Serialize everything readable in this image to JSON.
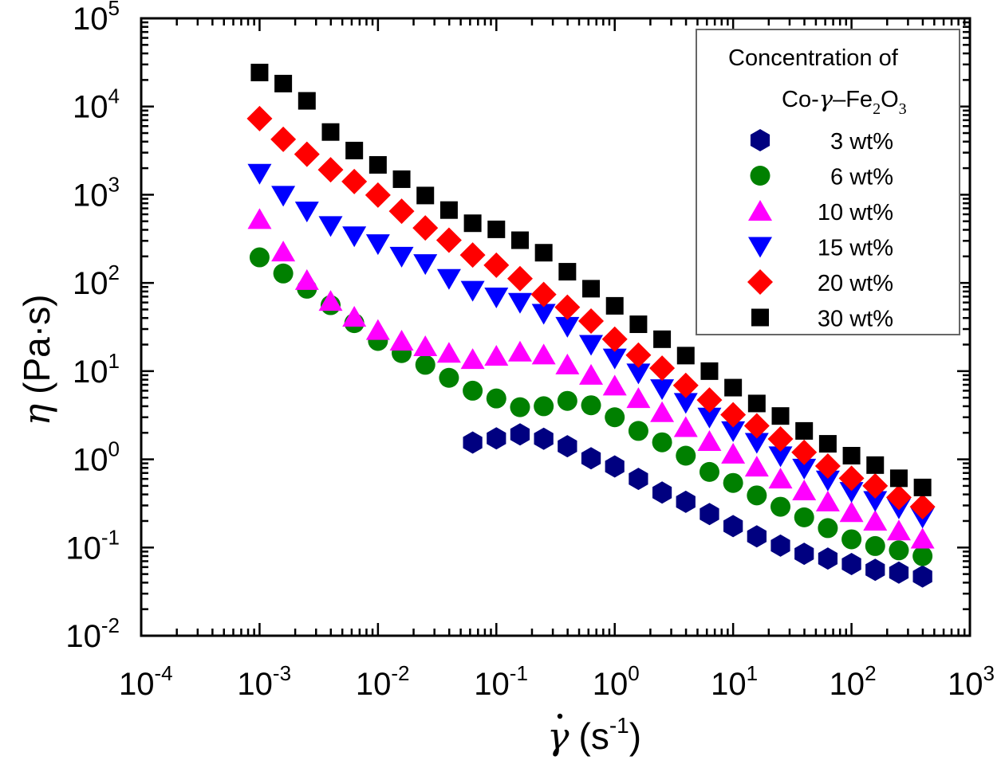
{
  "chart_data": {
    "type": "scatter",
    "title": "",
    "xlabel": "γ̇ (s⁻¹)",
    "xlabel_symbol": "γ",
    "xlabel_unit": "(s",
    "xlabel_exp": "-1",
    "xlabel_close": ")",
    "ylabel": "η (Pa·s)",
    "ylabel_symbol": "η",
    "ylabel_unit": "(Pa·s)",
    "xscale": "log",
    "yscale": "log",
    "xlim": [
      0.0001,
      1000
    ],
    "ylim": [
      0.01,
      100000
    ],
    "grid": false,
    "x_ticks": [
      {
        "base": "10",
        "exp": "-4",
        "value": 0.0001
      },
      {
        "base": "10",
        "exp": "-3",
        "value": 0.001
      },
      {
        "base": "10",
        "exp": "-2",
        "value": 0.01
      },
      {
        "base": "10",
        "exp": "-1",
        "value": 0.1
      },
      {
        "base": "10",
        "exp": "0",
        "value": 1
      },
      {
        "base": "10",
        "exp": "1",
        "value": 10
      },
      {
        "base": "10",
        "exp": "2",
        "value": 100
      },
      {
        "base": "10",
        "exp": "3",
        "value": 1000
      }
    ],
    "y_ticks": [
      {
        "base": "10",
        "exp": "-2",
        "value": 0.01
      },
      {
        "base": "10",
        "exp": "-1",
        "value": 0.1
      },
      {
        "base": "10",
        "exp": "0",
        "value": 1
      },
      {
        "base": "10",
        "exp": "1",
        "value": 10
      },
      {
        "base": "10",
        "exp": "2",
        "value": 100
      },
      {
        "base": "10",
        "exp": "3",
        "value": 1000
      },
      {
        "base": "10",
        "exp": "4",
        "value": 10000
      },
      {
        "base": "10",
        "exp": "5",
        "value": 100000
      }
    ],
    "legend": {
      "placement": "top-right",
      "title_line1": "Concentration of",
      "title_line2_prefix": "Co-",
      "title_line2_greek": "γ",
      "title_line2_dash": "–Fe",
      "title_line2_sub1": "2",
      "title_line2_o": "O",
      "title_line2_sub2": "3"
    },
    "x_log_start": -3,
    "x_log_step": 0.2,
    "series": [
      {
        "name": "3 wt%",
        "marker": "hexagon",
        "color": "#000080",
        "x_start_log": -1.2,
        "values": [
          1.55,
          1.73,
          1.92,
          1.71,
          1.41,
          1.03,
          0.83,
          0.6,
          0.42,
          0.33,
          0.24,
          0.175,
          0.134,
          0.105,
          0.085,
          0.075,
          0.065,
          0.056,
          0.052,
          0.047
        ]
      },
      {
        "name": "6 wt%",
        "marker": "circle",
        "color": "#008000",
        "x_start_log": -3,
        "values": [
          195,
          128,
          86,
          56,
          35,
          22,
          16,
          11.8,
          8.4,
          6.0,
          4.9,
          3.9,
          4.0,
          4.6,
          4.1,
          3.0,
          2.1,
          1.56,
          1.1,
          0.72,
          0.54,
          0.39,
          0.29,
          0.22,
          0.166,
          0.124,
          0.104,
          0.093,
          0.08
        ]
      },
      {
        "name": "10 wt%",
        "marker": "triangle-up",
        "color": "#FF00FF",
        "x_start_log": -3,
        "values": [
          525,
          225,
          107,
          62,
          41,
          29,
          22,
          19,
          16,
          13.6,
          14.8,
          16.5,
          15.3,
          11.8,
          9.0,
          6.8,
          4.9,
          3.4,
          2.3,
          1.6,
          1.15,
          0.82,
          0.6,
          0.44,
          0.33,
          0.25,
          0.2,
          0.155,
          0.125
        ]
      },
      {
        "name": "15 wt%",
        "marker": "triangle-down",
        "color": "#0000FF",
        "x_start_log": -3,
        "values": [
          1740,
          980,
          650,
          445,
          340,
          277,
          200,
          165,
          112,
          82,
          69,
          60,
          45,
          32,
          20,
          14,
          9.5,
          6.3,
          4.4,
          3.0,
          2.1,
          1.55,
          1.09,
          0.79,
          0.58,
          0.43,
          0.34,
          0.28,
          0.22
        ]
      },
      {
        "name": "20 wt%",
        "marker": "diamond",
        "color": "#FF0000",
        "x_start_log": -3,
        "values": [
          7300,
          4250,
          2880,
          1920,
          1410,
          990,
          650,
          420,
          305,
          207,
          159,
          112,
          74,
          53,
          37,
          23,
          15.2,
          10.8,
          6.9,
          4.7,
          3.2,
          2.4,
          1.7,
          1.2,
          0.84,
          0.61,
          0.5,
          0.37,
          0.29
        ]
      },
      {
        "name": "30 wt%",
        "marker": "square",
        "color": "#000000",
        "x_start_log": -3,
        "values": [
          24300,
          18200,
          11600,
          5140,
          3170,
          2180,
          1500,
          980,
          670,
          475,
          405,
          305,
          220,
          134,
          86,
          55,
          34,
          23,
          15,
          10,
          6.5,
          4.3,
          3.1,
          2.1,
          1.5,
          1.1,
          0.86,
          0.61,
          0.48
        ]
      }
    ]
  }
}
